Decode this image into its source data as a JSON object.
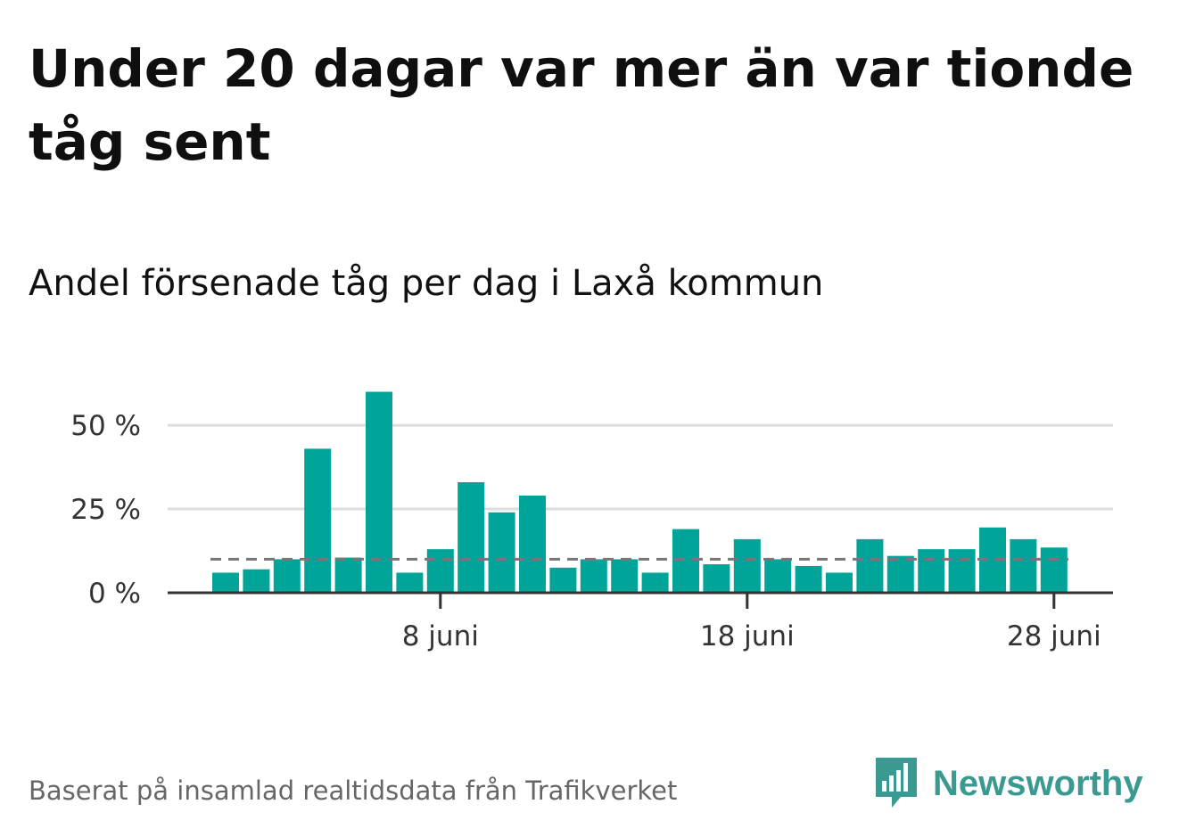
{
  "header": {
    "title": "Under 20 dagar var mer än var tionde tåg sent",
    "subtitle": "Andel försenade tåg per dag i Laxå kommun"
  },
  "footer": {
    "source": "Baserat på insamlad realtidsdata från Trafikverket",
    "brand": "Newsworthy",
    "brand_icon": "bar-chart-speech-bubble-icon"
  },
  "colors": {
    "bar": "#00a499",
    "reference_line": "#777777",
    "grid": "#dddddd",
    "axis": "#333333",
    "brand": "#3a9a92"
  },
  "chart_data": {
    "type": "bar",
    "x": [
      "1 juni",
      "2 juni",
      "3 juni",
      "4 juni",
      "5 juni",
      "6 juni",
      "7 juni",
      "8 juni",
      "9 juni",
      "10 juni",
      "11 juni",
      "12 juni",
      "13 juni",
      "14 juni",
      "15 juni",
      "16 juni",
      "17 juni",
      "18 juni",
      "19 juni",
      "20 juni",
      "21 juni",
      "22 juni",
      "23 juni",
      "24 juni",
      "25 juni",
      "26 juni",
      "27 juni",
      "28 juni"
    ],
    "values": [
      6,
      7,
      10,
      43,
      10.5,
      60,
      6,
      13,
      33,
      24,
      29,
      7.5,
      10,
      10,
      6,
      19,
      8.5,
      16,
      10,
      8,
      6,
      16,
      11,
      13,
      13,
      19.5,
      16,
      13.5
    ],
    "xticks": [
      {
        "index": 7,
        "label": "8 juni"
      },
      {
        "index": 17,
        "label": "18 juni"
      },
      {
        "index": 27,
        "label": "28 juni"
      }
    ],
    "yticks": [
      {
        "value": 0,
        "label": "0 %"
      },
      {
        "value": 25,
        "label": "25 %"
      },
      {
        "value": 50,
        "label": "50 %"
      }
    ],
    "ylim": [
      0,
      62
    ],
    "reference_line": 10,
    "grid": true
  }
}
